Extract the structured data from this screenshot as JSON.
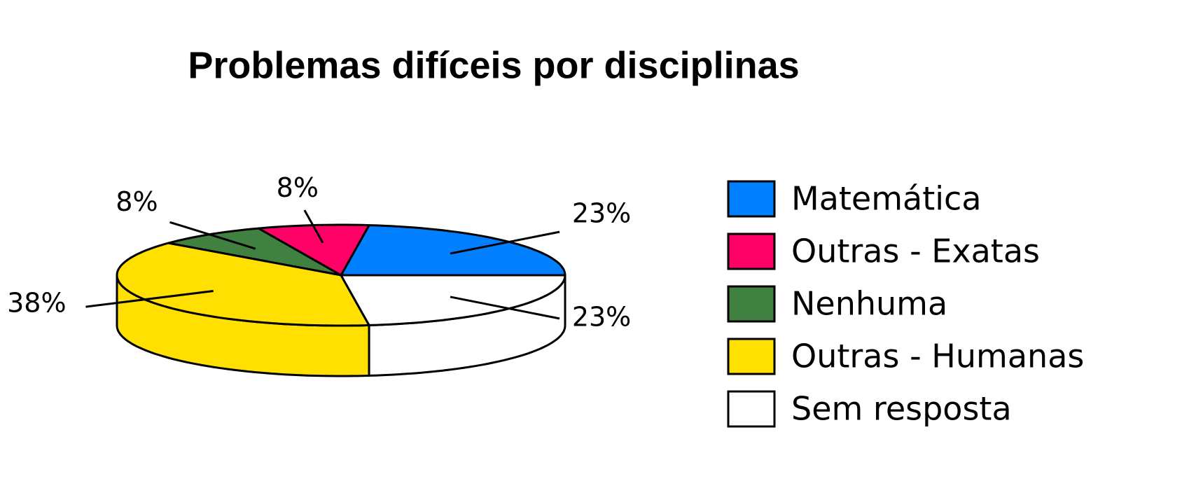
{
  "chart_data": {
    "type": "pie",
    "title": "Problemas difíceis por disciplinas",
    "categories": [
      "Matemática",
      "Outras - Exatas",
      "Nenhuma",
      "Outras - Humanas",
      "Sem resposta"
    ],
    "values": [
      23,
      8,
      8,
      38,
      23
    ],
    "value_labels": [
      "23%",
      "8%",
      "8%",
      "38%",
      "23%"
    ],
    "colors": [
      "#0080ff",
      "#ff0066",
      "#408040",
      "#ffe000",
      "#ffffff"
    ],
    "legend": "right"
  }
}
